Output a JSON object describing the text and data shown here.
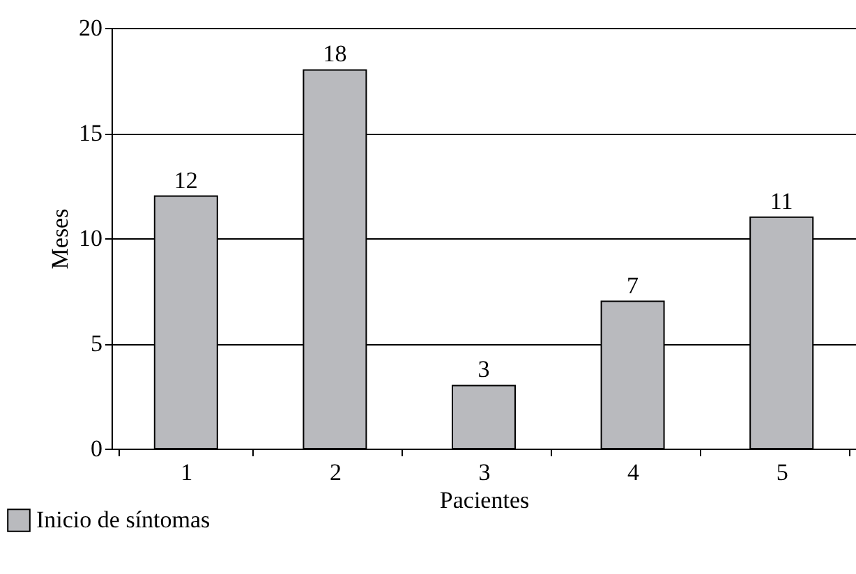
{
  "chart_data": {
    "type": "bar",
    "xlabel": "Pacientes",
    "ylabel": "Meses",
    "categories": [
      "1",
      "2",
      "3",
      "4",
      "5"
    ],
    "series": [
      {
        "name": "Inicio de síntomas",
        "color": "#b9babe",
        "values": [
          12,
          18,
          3,
          7,
          11
        ]
      }
    ],
    "ylim": [
      0,
      20
    ],
    "yticks": [
      0,
      5,
      10,
      15,
      20
    ],
    "grid": "y",
    "legend": "bottom left",
    "data_labels": true
  }
}
